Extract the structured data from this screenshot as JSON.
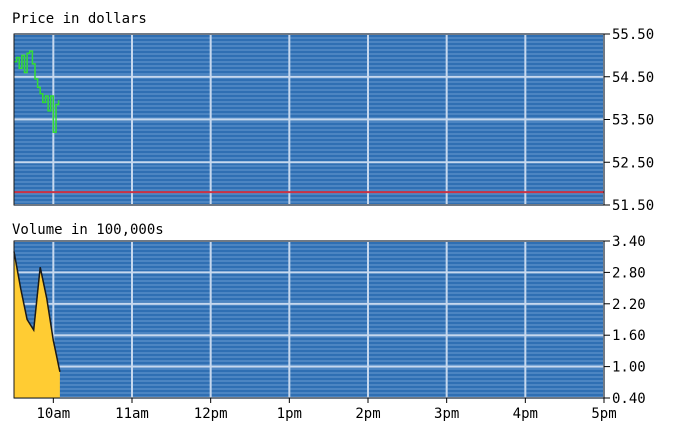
{
  "chart_data": [
    {
      "type": "line",
      "title": "Price in dollars",
      "x_ticks": [
        "10am",
        "11am",
        "12pm",
        "1pm",
        "2pm",
        "3pm",
        "4pm",
        "5pm"
      ],
      "y_ticks": [
        "55.50",
        "54.50",
        "53.50",
        "52.50",
        "51.50"
      ],
      "ylim": [
        51.5,
        55.5
      ],
      "grid": true,
      "reference_line": {
        "value": 51.8,
        "color": "#cc3344"
      },
      "series": [
        {
          "color": "#33dd33",
          "x": [
            "9:30",
            "9:32",
            "9:34",
            "9:36",
            "9:38",
            "9:40",
            "9:42",
            "9:44",
            "9:46",
            "9:48",
            "9:50",
            "9:52",
            "9:54",
            "9:56",
            "9:58",
            "10:00",
            "10:02",
            "10:04"
          ],
          "y": [
            54.85,
            54.95,
            54.7,
            55.0,
            54.6,
            55.05,
            55.1,
            54.8,
            54.45,
            54.25,
            54.1,
            53.9,
            54.05,
            53.7,
            54.05,
            53.2,
            53.85,
            53.95
          ]
        }
      ]
    },
    {
      "type": "area",
      "title": "Volume in 100,000s",
      "x_ticks": [
        "10am",
        "11am",
        "12pm",
        "1pm",
        "2pm",
        "3pm",
        "4pm",
        "5pm"
      ],
      "y_ticks": [
        "3.40",
        "2.80",
        "2.20",
        "1.60",
        "1.00",
        "0.40"
      ],
      "ylim": [
        0.4,
        3.4
      ],
      "grid": true,
      "series": [
        {
          "color": "#ffcc33",
          "x": [
            "9:30",
            "9:35",
            "9:40",
            "9:45",
            "9:50",
            "9:55",
            "10:00",
            "10:05"
          ],
          "y": [
            3.2,
            2.5,
            1.9,
            1.7,
            2.9,
            2.3,
            1.5,
            0.9
          ]
        }
      ]
    }
  ]
}
